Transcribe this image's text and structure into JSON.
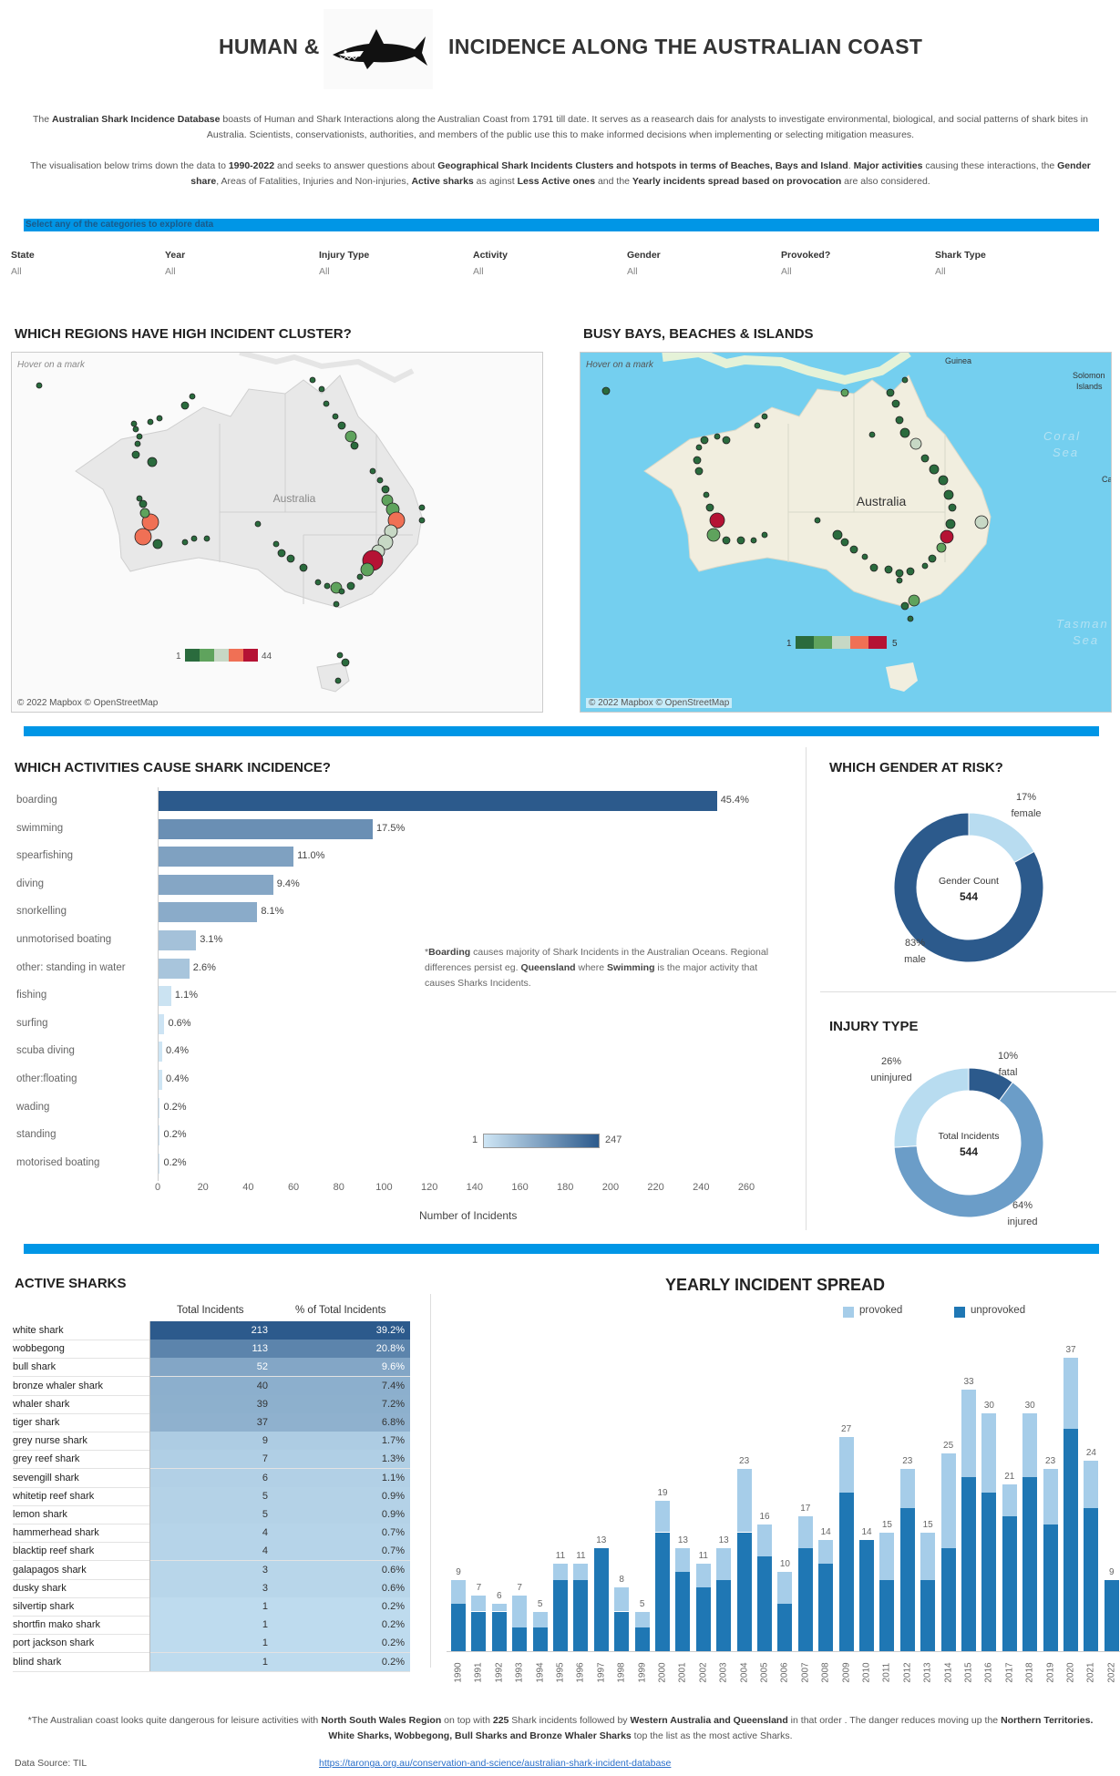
{
  "header": {
    "title_left": "HUMAN &",
    "title_right": "INCIDENCE ALONG THE AUSTRALIAN COAST",
    "logo_icon": "shark-logo-icon"
  },
  "intro": {
    "p1_a": "The ",
    "p1_b": "Australian Shark Incidence Database",
    "p1_c": " boasts of Human and Shark Interactions along the Australian Coast from 1791 till date. It serves as a reasearch dais for analysts to investigate environmental, biological, and social patterns of shark bites in Australia. Scientists, conservationists, authorities, and members of the public use this to make informed decisions when implementing or selecting mitigation measures.",
    "p2_a": "The visualisation below trims down the data to ",
    "p2_b": "1990-2022",
    "p2_c": " and seeks to answer questions about ",
    "p2_d": "Geographical Shark Incidents Clusters and hotspots in terms of Beaches, Bays and Island",
    "p2_e": ". ",
    "p2_f": "Major activities",
    "p2_g": " causing these interactions, the ",
    "p2_h": "Gender share",
    "p2_i": ", Areas of Fatalities, Injuries and Non-injuries, ",
    "p2_j": "Active sharks",
    "p2_k": " as aginst ",
    "p2_l": "Less Active ones",
    "p2_m": " and the ",
    "p2_n": "Yearly incidents spread based on provocation",
    "p2_o": " are also considered."
  },
  "filters": {
    "banner": "Select any of the categories to explore data",
    "items": [
      {
        "label": "State",
        "value": "All"
      },
      {
        "label": "Year",
        "value": "All"
      },
      {
        "label": "Injury Type",
        "value": "All"
      },
      {
        "label": "Activity",
        "value": "All"
      },
      {
        "label": "Gender",
        "value": "All"
      },
      {
        "label": "Provoked?",
        "value": "All"
      },
      {
        "label": "Shark Type",
        "value": "All"
      }
    ]
  },
  "maps": {
    "left": {
      "title": "WHICH REGIONS HAVE HIGH INCIDENT CLUSTER?",
      "hover": "Hover on a mark",
      "country": "Australia",
      "legend_min": "1",
      "legend_max": "44",
      "credit": "© 2022 Mapbox © OpenStreetMap"
    },
    "right": {
      "title": "BUSY BAYS, BEACHES & ISLANDS",
      "hover": "Hover on a mark",
      "country": "Australia",
      "legend_min": "1",
      "legend_max": "5",
      "credit": "© 2022 Mapbox © OpenStreetMap",
      "place_guinea": "Guinea",
      "place_solomon1": "Solomon",
      "place_solomon2": "Islands",
      "place_coral1": "Coral",
      "place_coral2": "Sea",
      "place_tasman1": "Tasman",
      "place_tasman2": "Sea",
      "place_ca": "Ca"
    }
  },
  "chart_data": [
    {
      "type": "bar",
      "title": "WHICH ACTIVITIES CAUSE SHARK INCIDENCE?",
      "xlabel": "Number of Incidents",
      "xlim": [
        0,
        260
      ],
      "xticks": [
        "0",
        "20",
        "40",
        "60",
        "80",
        "100",
        "120",
        "140",
        "160",
        "180",
        "200",
        "220",
        "240",
        "260"
      ],
      "categories": [
        "boarding",
        "swimming",
        "spearfishing",
        "diving",
        "snorkelling",
        "unmotorised boating",
        "other: standing in water",
        "fishing",
        "surfing",
        "scuba diving",
        "other:floating",
        "wading",
        "standing",
        "motorised boating"
      ],
      "values": [
        247,
        95,
        60,
        51,
        44,
        17,
        14,
        6,
        3,
        2,
        2,
        1,
        1,
        1
      ],
      "labels": [
        "45.4%",
        "17.5%",
        "11.0%",
        "9.4%",
        "8.1%",
        "3.1%",
        "2.6%",
        "1.1%",
        "0.6%",
        "0.4%",
        "0.4%",
        "0.2%",
        "0.2%",
        "0.2%"
      ],
      "legend_min": "1",
      "legend_max": "247",
      "note_a": "*",
      "note_b": "Boarding",
      "note_c": " causes majority of Shark Incidents in the Australian Oceans. Regional differences persist eg. ",
      "note_d": "Queensland",
      "note_e": " where ",
      "note_f": "Swimming",
      "note_g": " is the major activity that causes Sharks Incidents."
    },
    {
      "type": "pie",
      "title": "WHICH GENDER AT RISK?",
      "center_label": "Gender Count",
      "center_value": "544",
      "slices": [
        {
          "name": "female",
          "pct": "17%",
          "value": 17,
          "color": "#b8dcf0"
        },
        {
          "name": "male",
          "pct": "83%",
          "value": 83,
          "color": "#2c5a8c"
        }
      ]
    },
    {
      "type": "pie",
      "title": "INJURY TYPE",
      "center_label": "Total Incidents",
      "center_value": "544",
      "slices": [
        {
          "name": "fatal",
          "pct": "10%",
          "value": 10,
          "color": "#2c5a8c"
        },
        {
          "name": "injured",
          "pct": "64%",
          "value": 64,
          "color": "#6b9dc8"
        },
        {
          "name": "uninjured",
          "pct": "26%",
          "value": 26,
          "color": "#b8dcf0"
        }
      ]
    },
    {
      "type": "table",
      "title": "ACTIVE SHARKS",
      "columns": [
        "Total Incidents",
        "% of Total Incidents"
      ],
      "rows": [
        {
          "name": "white shark",
          "total": "213",
          "pct": "39.2%",
          "n": 213
        },
        {
          "name": "wobbegong",
          "total": "113",
          "pct": "20.8%",
          "n": 113
        },
        {
          "name": "bull shark",
          "total": "52",
          "pct": "9.6%",
          "n": 52
        },
        {
          "name": "bronze whaler shark",
          "total": "40",
          "pct": "7.4%",
          "n": 40
        },
        {
          "name": "whaler shark",
          "total": "39",
          "pct": "7.2%",
          "n": 39
        },
        {
          "name": "tiger shark",
          "total": "37",
          "pct": "6.8%",
          "n": 37
        },
        {
          "name": "grey nurse shark",
          "total": "9",
          "pct": "1.7%",
          "n": 9
        },
        {
          "name": "grey reef shark",
          "total": "7",
          "pct": "1.3%",
          "n": 7
        },
        {
          "name": "sevengill shark",
          "total": "6",
          "pct": "1.1%",
          "n": 6
        },
        {
          "name": "whitetip reef shark",
          "total": "5",
          "pct": "0.9%",
          "n": 5
        },
        {
          "name": "lemon shark",
          "total": "5",
          "pct": "0.9%",
          "n": 5
        },
        {
          "name": "hammerhead shark",
          "total": "4",
          "pct": "0.7%",
          "n": 4
        },
        {
          "name": "blacktip reef shark",
          "total": "4",
          "pct": "0.7%",
          "n": 4
        },
        {
          "name": "galapagos shark",
          "total": "3",
          "pct": "0.6%",
          "n": 3
        },
        {
          "name": "dusky shark",
          "total": "3",
          "pct": "0.6%",
          "n": 3
        },
        {
          "name": "silvertip shark",
          "total": "1",
          "pct": "0.2%",
          "n": 1
        },
        {
          "name": "shortfin mako shark",
          "total": "1",
          "pct": "0.2%",
          "n": 1
        },
        {
          "name": "port jackson shark",
          "total": "1",
          "pct": "0.2%",
          "n": 1
        },
        {
          "name": "blind shark",
          "total": "1",
          "pct": "0.2%",
          "n": 1
        }
      ]
    },
    {
      "type": "bar",
      "title": "YEARLY INCIDENT SPREAD",
      "stacked": true,
      "categories": [
        "1990",
        "1991",
        "1992",
        "1993",
        "1994",
        "1995",
        "1996",
        "1997",
        "1998",
        "1999",
        "2000",
        "2001",
        "2002",
        "2003",
        "2004",
        "2005",
        "2006",
        "2007",
        "2008",
        "2009",
        "2010",
        "2011",
        "2012",
        "2013",
        "2014",
        "2015",
        "2016",
        "2017",
        "2018",
        "2019",
        "2020",
        "2021",
        "2022"
      ],
      "series": [
        {
          "name": "unprovoked",
          "color": "#1f77b4",
          "values": [
            6,
            5,
            5,
            3,
            3,
            9,
            9,
            13,
            5,
            3,
            15,
            10,
            8,
            9,
            15,
            12,
            6,
            13,
            11,
            20,
            14,
            9,
            18,
            9,
            13,
            22,
            20,
            17,
            22,
            16,
            28,
            18,
            9
          ]
        },
        {
          "name": "provoked",
          "color": "#a6cde9",
          "values": [
            3,
            2,
            1,
            4,
            2,
            2,
            2,
            0,
            3,
            2,
            4,
            3,
            3,
            4,
            8,
            4,
            4,
            4,
            3,
            7,
            0,
            6,
            5,
            6,
            12,
            11,
            10,
            4,
            8,
            7,
            9,
            6,
            0
          ]
        }
      ],
      "totals": [
        9,
        7,
        6,
        7,
        5,
        11,
        11,
        13,
        8,
        5,
        19,
        13,
        11,
        13,
        23,
        16,
        10,
        17,
        14,
        27,
        14,
        15,
        23,
        15,
        25,
        33,
        30,
        21,
        30,
        23,
        37,
        24,
        9
      ],
      "ylim": [
        0,
        40
      ]
    }
  ],
  "footer": {
    "note_a": "*The Australian coast looks quite dangerous for leisure activities with ",
    "note_b": "North South Wales Region",
    "note_c": " on top with ",
    "note_d": "225",
    "note_e": " Shark incidents followed by ",
    "note_f": "Western Australia and Queensland",
    "note_g": " in that order . The danger reduces moving up the ",
    "note_h": "Northern Territories. White Sharks, Wobbegong, Bull Sharks and Bronze Whaler Sharks",
    "note_i": " top the list as the most active Sharks.",
    "source": "Data Source: TIL",
    "link": "https://taronga.org.au/conservation-and-science/australian-shark-incident-database"
  }
}
